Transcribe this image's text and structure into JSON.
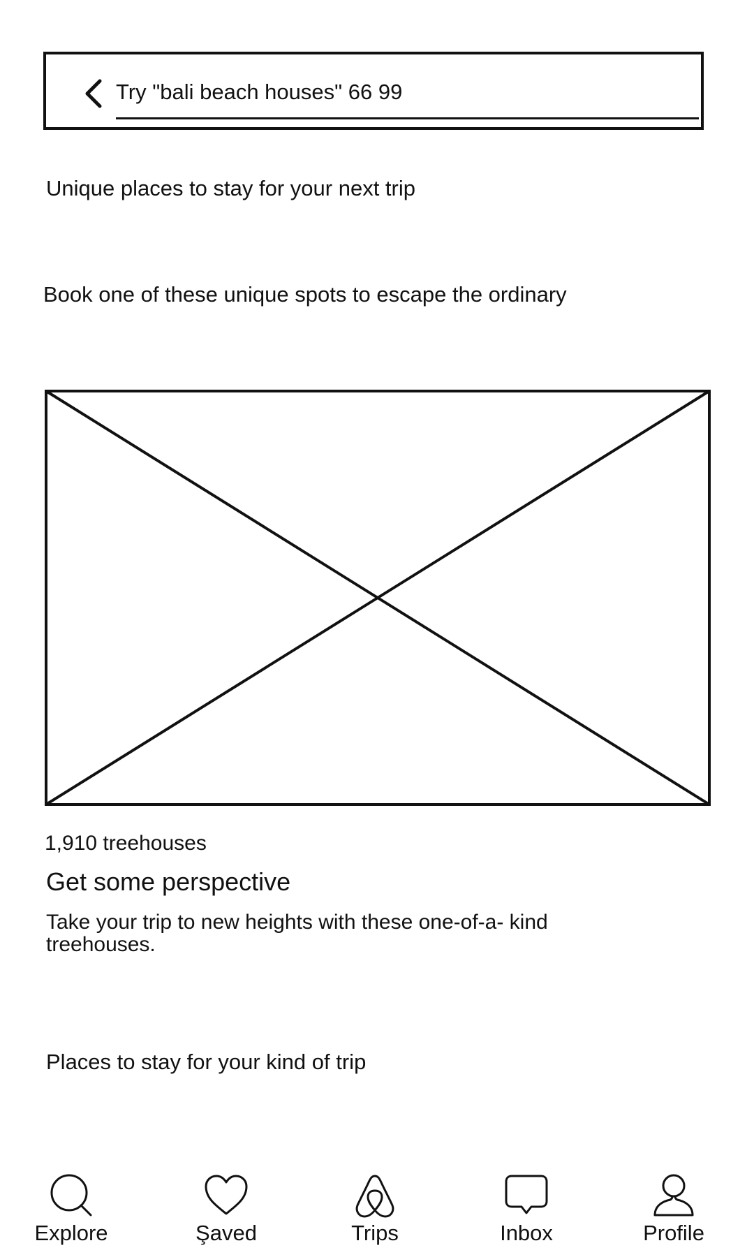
{
  "search": {
    "text": "Try \"bali beach houses\" 66 99"
  },
  "sections": {
    "unique_heading": "Unique places to stay for your next trip",
    "unique_subheading": "Book one of these unique spots to escape the ordinary"
  },
  "card": {
    "count": "1,910 treehouses",
    "title": "Get some perspective",
    "description_line1": "Take your trip to new heights with these one-of-a- kind",
    "description_line2": "treehouses."
  },
  "places_heading": "Places to stay for your kind of trip",
  "nav": {
    "items": [
      {
        "label": "Explore",
        "icon": "search-icon"
      },
      {
        "label": "Şaved",
        "icon": "heart-icon"
      },
      {
        "label": "Trips",
        "icon": "airbnb-logo-icon"
      },
      {
        "label": "Inbox",
        "icon": "message-bubble-icon"
      },
      {
        "label": "Profile",
        "icon": "user-icon"
      }
    ]
  }
}
